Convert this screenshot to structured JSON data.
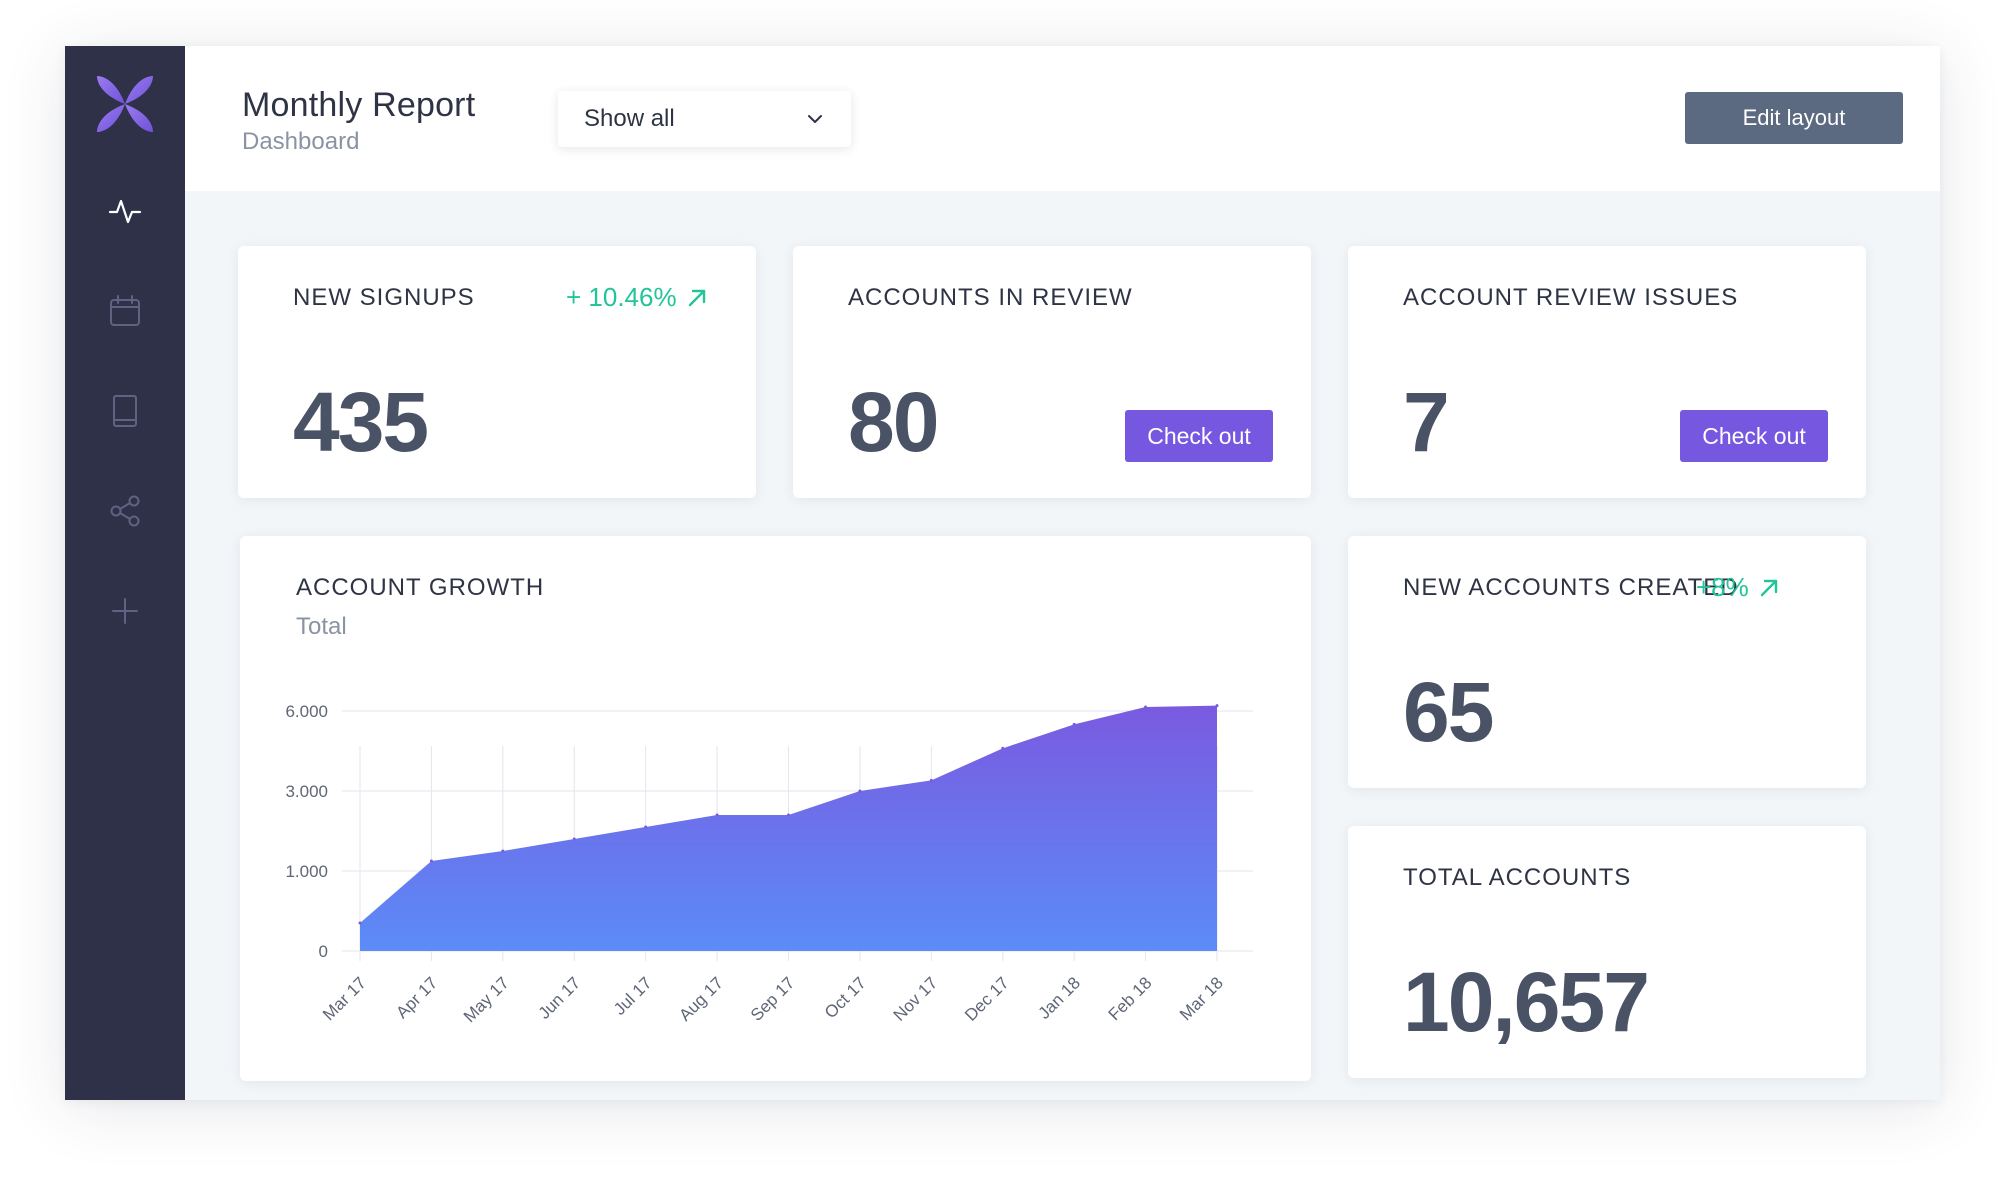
{
  "header": {
    "title": "Monthly Report",
    "subtitle": "Dashboard",
    "filter": {
      "value": "Show all"
    },
    "edit_layout_label": "Edit layout"
  },
  "sidebar": {
    "logo": "x-flower-logo",
    "items": [
      {
        "icon": "activity-icon",
        "active": true
      },
      {
        "icon": "calendar-icon",
        "active": false
      },
      {
        "icon": "book-icon",
        "active": false
      },
      {
        "icon": "share-icon",
        "active": false
      },
      {
        "icon": "plus-icon",
        "active": false
      }
    ]
  },
  "cards": {
    "new_signups": {
      "label": "NEW SIGNUPS",
      "value": "435",
      "change": "+ 10.46%"
    },
    "accounts_in_review": {
      "label": "ACCOUNTS IN REVIEW",
      "value": "80",
      "action": "Check out"
    },
    "account_review_issues": {
      "label": "ACCOUNT REVIEW ISSUES",
      "value": "7",
      "action": "Check out"
    },
    "new_accounts_created": {
      "label": "NEW ACCOUNTS CREATED",
      "value": "65",
      "change": "+8%"
    },
    "total_accounts": {
      "label": "TOTAL ACCOUNTS",
      "value": "10,657"
    }
  },
  "colors": {
    "sidebar": "#2f3149",
    "accent": "#7657e0",
    "positive": "#22c49a",
    "chart_top": "#7a5ae0",
    "chart_bottom": "#5b8cf7"
  },
  "chart_data": {
    "type": "area",
    "title": "ACCOUNT GROWTH",
    "subtitle": "Total",
    "categories": [
      "Mar 17",
      "Apr 17",
      "May 17",
      "Jun 17",
      "Jul 17",
      "Aug 17",
      "Sep 17",
      "Oct 17",
      "Nov 17",
      "Dec 17",
      "Jan 18",
      "Feb 18",
      "Mar 18"
    ],
    "y_ticks": [
      {
        "value": 0,
        "label": "0"
      },
      {
        "value": 1000,
        "label": "1.000"
      },
      {
        "value": 3000,
        "label": "3.000"
      },
      {
        "value": 6000,
        "label": "6.000"
      }
    ],
    "values": [
      350,
      1250,
      1500,
      1800,
      2100,
      2400,
      2400,
      3000,
      3400,
      4600,
      5500,
      6150,
      6200
    ],
    "grid": true,
    "legend": "none"
  }
}
